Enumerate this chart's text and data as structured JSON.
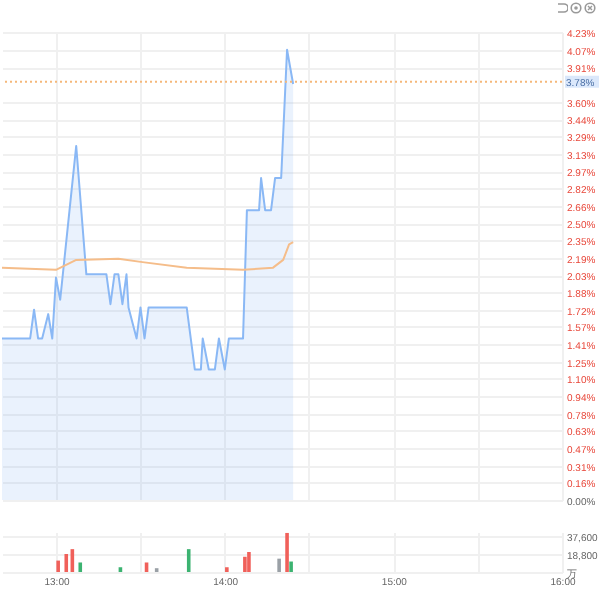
{
  "chart_data": [
    {
      "type": "area",
      "xlim": [
        12.68,
        16
      ],
      "xticks": [
        {
          "value": 13,
          "label": null
        },
        {
          "value": 13.5,
          "label": null
        },
        {
          "value": 14,
          "label": null
        },
        {
          "value": 14.5,
          "label": null
        },
        {
          "value": 15,
          "label": null
        },
        {
          "value": 15.5,
          "label": null
        },
        {
          "value": 16,
          "label": null
        }
      ],
      "ylim": [
        0,
        4.23
      ],
      "yticks": [
        {
          "value": 0,
          "label": "0.00%"
        },
        {
          "value": 0.16,
          "label": "0.16%"
        },
        {
          "value": 0.31,
          "label": "0.31%"
        },
        {
          "value": 0.47,
          "label": "0.47%"
        },
        {
          "value": 0.63,
          "label": "0.63%"
        },
        {
          "value": 0.78,
          "label": "0.78%"
        },
        {
          "value": 0.94,
          "label": "0.94%"
        },
        {
          "value": 1.1,
          "label": "1.10%"
        },
        {
          "value": 1.25,
          "label": "1.25%"
        },
        {
          "value": 1.41,
          "label": "1.41%"
        },
        {
          "value": 1.57,
          "label": "1.57%"
        },
        {
          "value": 1.72,
          "label": "1.72%"
        },
        {
          "value": 1.88,
          "label": "1.88%"
        },
        {
          "value": 2.03,
          "label": "2.03%"
        },
        {
          "value": 2.19,
          "label": "2.19%"
        },
        {
          "value": 2.35,
          "label": "2.35%"
        },
        {
          "value": 2.5,
          "label": "2.50%"
        },
        {
          "value": 2.66,
          "label": "2.66%"
        },
        {
          "value": 2.82,
          "label": "2.82%"
        },
        {
          "value": 2.97,
          "label": "2.97%"
        },
        {
          "value": 3.13,
          "label": "3.13%"
        },
        {
          "value": 3.29,
          "label": "3.29%"
        },
        {
          "value": 3.44,
          "label": "3.44%"
        },
        {
          "value": 3.6,
          "label": "3.60%"
        },
        {
          "value": 3.91,
          "label": "3.91%"
        },
        {
          "value": 4.07,
          "label": "4.07%"
        },
        {
          "value": 4.23,
          "label": "4.23%"
        }
      ],
      "grid": true,
      "tick_labels": "y",
      "ref_lines": [
        {
          "axis": "y",
          "value": 3.78,
          "label": "3.78%",
          "color": "#f5b87a",
          "line_style": "dotted"
        }
      ],
      "series": [
        {
          "type": "area",
          "color": "#8ab8f5",
          "x": [
            12.68,
            12.847,
            12.87,
            12.894,
            12.918,
            12.954,
            12.978,
            13.0,
            13.025,
            13.12,
            13.18,
            13.299,
            13.323,
            13.347,
            13.37,
            13.394,
            13.418,
            13.43,
            13.478,
            13.501,
            13.525,
            13.549,
            13.775,
            13.823,
            13.859,
            13.87,
            13.906,
            13.942,
            13.966,
            14.001,
            14.025,
            14.109,
            14.132,
            14.204,
            14.216,
            14.24,
            14.275,
            14.299,
            14.335,
            14.37,
            14.406
          ],
          "values": [
            1.46,
            1.46,
            1.72,
            1.46,
            1.46,
            1.68,
            1.46,
            2.01,
            1.81,
            3.2,
            2.04,
            2.04,
            1.77,
            2.04,
            2.04,
            1.77,
            2.04,
            1.74,
            1.46,
            1.74,
            1.46,
            1.74,
            1.74,
            1.18,
            1.18,
            1.46,
            1.18,
            1.18,
            1.46,
            1.18,
            1.46,
            1.46,
            2.62,
            2.62,
            2.91,
            2.62,
            2.62,
            2.91,
            2.91,
            4.07,
            3.76
          ]
        },
        {
          "type": "line",
          "color": "#f5bd8a",
          "x": [
            12.68,
            13.0,
            13.12,
            13.37,
            13.513,
            13.775,
            14.109,
            14.287,
            14.347,
            14.382,
            14.406
          ],
          "values": [
            2.1,
            2.08,
            2.17,
            2.18,
            2.15,
            2.1,
            2.08,
            2.1,
            2.17,
            2.31,
            2.33
          ]
        }
      ]
    },
    {
      "type": "bar",
      "xlim": [
        12.68,
        16
      ],
      "xticks": [
        {
          "value": 13,
          "label": "13:00"
        },
        {
          "value": 13.5,
          "label": null
        },
        {
          "value": 14,
          "label": "14:00"
        },
        {
          "value": 14.5,
          "label": null
        },
        {
          "value": 15,
          "label": "15:00"
        },
        {
          "value": 15.5,
          "label": null
        },
        {
          "value": 16,
          "label": "16:00"
        }
      ],
      "ylim": [
        0,
        42000
      ],
      "yticks": [
        {
          "value": 0,
          "label": "万"
        },
        {
          "value": 18800,
          "label": "18,800"
        },
        {
          "value": 37600,
          "label": "37,600"
        }
      ],
      "grid": true,
      "x": [
        13.013,
        13.061,
        13.097,
        13.144,
        13.382,
        13.537,
        13.597,
        13.787,
        14.013,
        14.12,
        14.144,
        14.323,
        14.37,
        14.394
      ],
      "values": [
        12000,
        19000,
        24000,
        10000,
        5000,
        10000,
        4000,
        24000,
        5000,
        16000,
        21000,
        14000,
        41000,
        11000
      ],
      "colors": [
        "#f0605a",
        "#f0605a",
        "#f0605a",
        "#3cb371",
        "#3cb371",
        "#f0605a",
        "#9aa0a6",
        "#3cb371",
        "#f0605a",
        "#f0605a",
        "#f0605a",
        "#9aa0a6",
        "#f0605a",
        "#3cb371"
      ]
    }
  ]
}
